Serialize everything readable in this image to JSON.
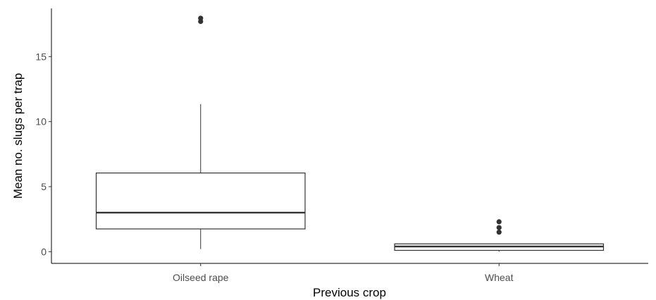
{
  "chart_data": {
    "type": "boxplot",
    "xlabel": "Previous crop",
    "ylabel": "Mean no. slugs per trap",
    "ylim": [
      -0.9,
      18.7
    ],
    "y_ticks": [
      0,
      5,
      10,
      15
    ],
    "grid": false,
    "categories": [
      "Oilseed rape",
      "Wheat"
    ],
    "boxes": [
      {
        "category": "Oilseed rape",
        "whisker_low": 0.2,
        "q1": 1.75,
        "median": 3.0,
        "q3": 6.05,
        "whisker_high": 11.35,
        "outliers": [
          17.7,
          17.95
        ]
      },
      {
        "category": "Wheat",
        "whisker_low": 0.0,
        "q1": 0.1,
        "median": 0.4,
        "q3": 0.6,
        "whisker_high": 0.6,
        "outliers": [
          1.5,
          1.85,
          2.3
        ]
      }
    ],
    "colors": {
      "box_stroke": "#333333",
      "box_fill": "#ffffff",
      "outlier": "#333333",
      "axis": "#000000"
    }
  }
}
